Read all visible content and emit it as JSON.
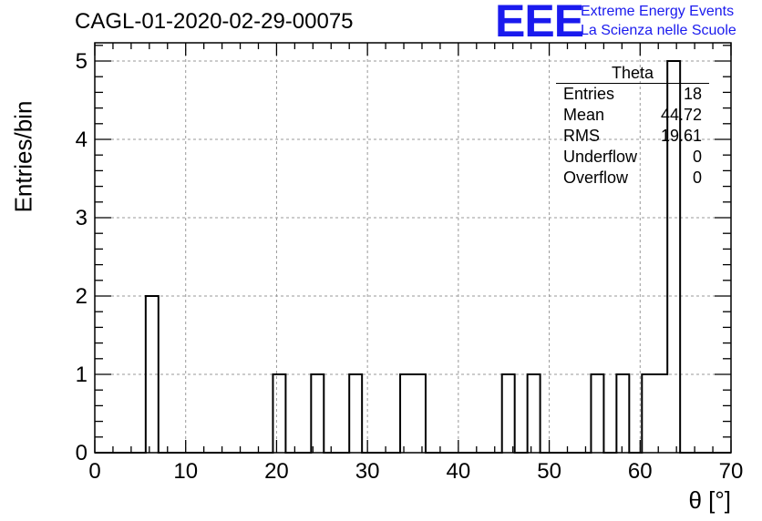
{
  "header": {
    "title": "CAGL-01-2020-02-29-00075",
    "logo_mark": "EEE",
    "logo_line1": "Extreme Energy Events",
    "logo_line2": "La Scienza nelle Scuole",
    "logo_color": "#1a1aee"
  },
  "stats_box": {
    "title": "Theta",
    "rows": [
      {
        "label": "Entries",
        "value": "18"
      },
      {
        "label": "Mean",
        "value": "44.72"
      },
      {
        "label": "RMS",
        "value": "19.61"
      },
      {
        "label": "Underflow",
        "value": "0"
      },
      {
        "label": "Overflow",
        "value": "0"
      }
    ]
  },
  "chart_data": {
    "type": "bar",
    "title": "CAGL-01-2020-02-29-00075",
    "xlabel": "θ [°]",
    "ylabel": "Entries/bin",
    "xlim": [
      0,
      70
    ],
    "ylim": [
      0,
      5.2
    ],
    "grid": true,
    "bin_width": 1.4,
    "xticks": [
      0,
      10,
      20,
      30,
      40,
      50,
      60,
      70
    ],
    "yticks": [
      0,
      1,
      2,
      3,
      4,
      5
    ],
    "bins": [
      {
        "x0": 5.6,
        "x1": 7.0,
        "value": 2
      },
      {
        "x0": 19.6,
        "x1": 21.0,
        "value": 1
      },
      {
        "x0": 23.8,
        "x1": 25.2,
        "value": 1
      },
      {
        "x0": 28.0,
        "x1": 29.4,
        "value": 1
      },
      {
        "x0": 33.6,
        "x1": 35.0,
        "value": 1
      },
      {
        "x0": 35.0,
        "x1": 36.4,
        "value": 1
      },
      {
        "x0": 44.8,
        "x1": 46.2,
        "value": 1
      },
      {
        "x0": 47.6,
        "x1": 49.0,
        "value": 1
      },
      {
        "x0": 54.6,
        "x1": 56.0,
        "value": 1
      },
      {
        "x0": 57.4,
        "x1": 58.8,
        "value": 1
      },
      {
        "x0": 60.2,
        "x1": 61.6,
        "value": 1
      },
      {
        "x0": 61.6,
        "x1": 63.0,
        "value": 1
      },
      {
        "x0": 63.0,
        "x1": 64.4,
        "value": 5
      }
    ]
  }
}
